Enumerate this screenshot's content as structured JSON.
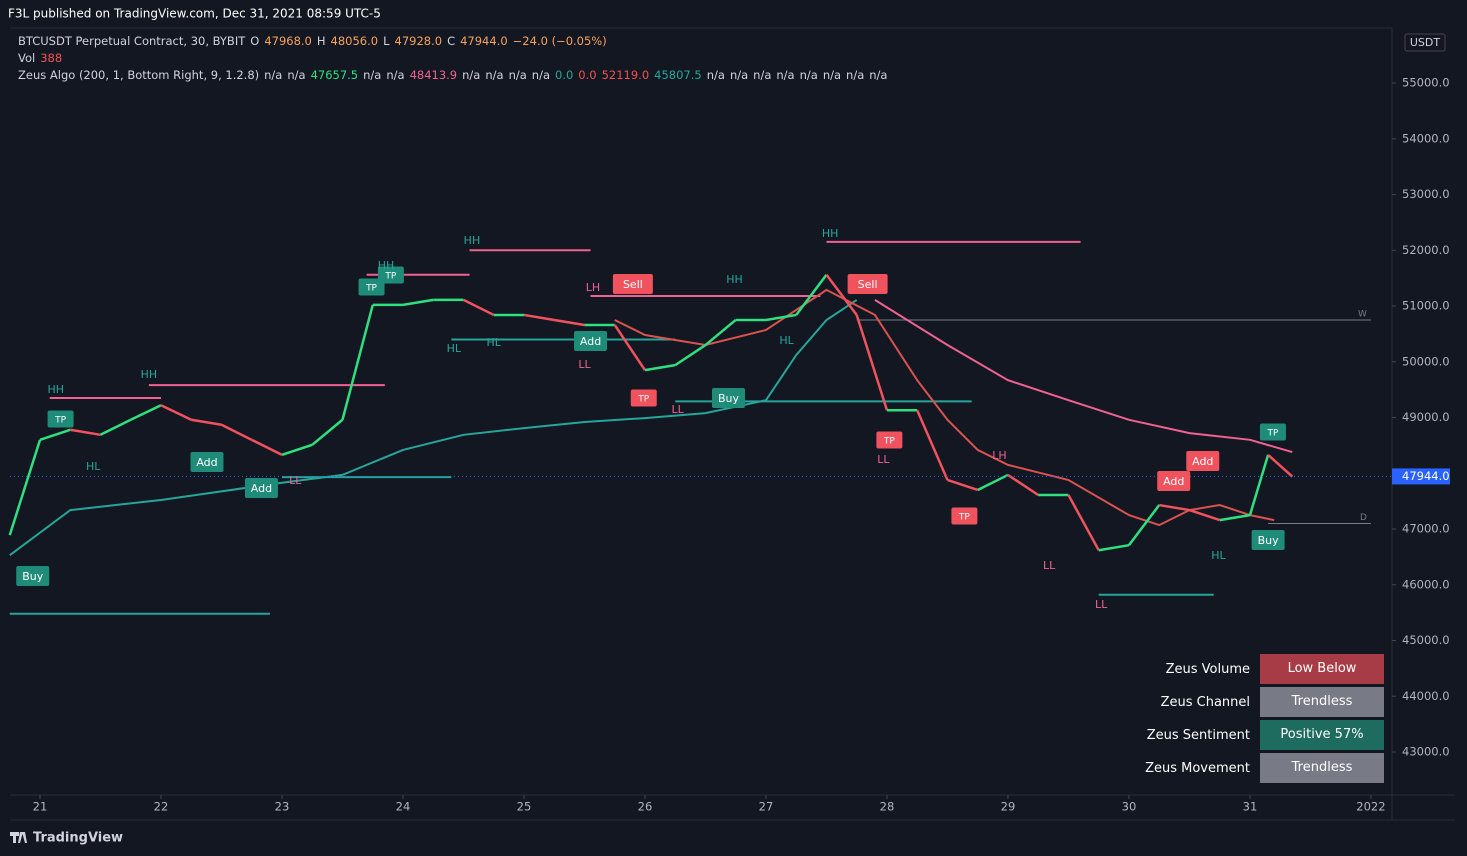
{
  "header": {
    "published": "F3L published on TradingView.com, Dec 31, 2021 08:59 UTC-5",
    "legend": [
      [
        {
          "text": "BTCUSDT Perpetual Contract, 30, BYBIT",
          "color": "#d1d4dc"
        },
        {
          "text": "O",
          "color": "#d1d4dc"
        },
        {
          "text": "47968.0",
          "color": "#f7a35c"
        },
        {
          "text": "H",
          "color": "#d1d4dc"
        },
        {
          "text": "48056.0",
          "color": "#f7a35c"
        },
        {
          "text": "L",
          "color": "#d1d4dc"
        },
        {
          "text": "47928.0",
          "color": "#f7a35c"
        },
        {
          "text": "C",
          "color": "#d1d4dc"
        },
        {
          "text": "47944.0",
          "color": "#f7a35c"
        },
        {
          "text": "−24.0 (−0.05%)",
          "color": "#f7a35c"
        }
      ],
      [
        {
          "text": "Vol",
          "color": "#d1d4dc"
        },
        {
          "text": "388",
          "color": "#f05350"
        }
      ],
      [
        {
          "text": "Zeus Algo (200, 1, Bottom Right, 9, 1.2.8)",
          "color": "#d1d4dc"
        },
        {
          "text": "n/a",
          "color": "#d1d4dc"
        },
        {
          "text": "n/a",
          "color": "#d1d4dc"
        },
        {
          "text": "47657.5",
          "color": "#2ee07e"
        },
        {
          "text": "n/a",
          "color": "#d1d4dc"
        },
        {
          "text": "n/a",
          "color": "#d1d4dc"
        },
        {
          "text": "48413.9",
          "color": "#f06292"
        },
        {
          "text": "n/a",
          "color": "#d1d4dc"
        },
        {
          "text": "n/a",
          "color": "#d1d4dc"
        },
        {
          "text": "n/a",
          "color": "#d1d4dc"
        },
        {
          "text": "n/a",
          "color": "#d1d4dc"
        },
        {
          "text": "0.0",
          "color": "#26a69a"
        },
        {
          "text": "0.0",
          "color": "#f05350"
        },
        {
          "text": "52119.0",
          "color": "#f05350"
        },
        {
          "text": "45807.5",
          "color": "#26a69a"
        },
        {
          "text": "n/a",
          "color": "#d1d4dc"
        },
        {
          "text": "n/a",
          "color": "#d1d4dc"
        },
        {
          "text": "n/a",
          "color": "#d1d4dc"
        },
        {
          "text": "n/a",
          "color": "#d1d4dc"
        },
        {
          "text": "n/a",
          "color": "#d1d4dc"
        },
        {
          "text": "n/a",
          "color": "#d1d4dc"
        },
        {
          "text": "n/a",
          "color": "#d1d4dc"
        },
        {
          "text": "n/a",
          "color": "#d1d4dc"
        }
      ]
    ]
  },
  "chart_data": {
    "type": "line",
    "colors": {
      "up": "#2ee07e",
      "down": "#f0525e"
    },
    "x": [
      20.75,
      21,
      21.25,
      21.5,
      21.75,
      22,
      22.25,
      22.5,
      22.75,
      23,
      23.25,
      23.5,
      23.75,
      24,
      24.25,
      24.5,
      24.75,
      25,
      25.25,
      25.5,
      25.75,
      26,
      26.25,
      26.5,
      26.75,
      27,
      27.25,
      27.5,
      27.75,
      28,
      28.25,
      28.5,
      28.75,
      29,
      29.25,
      29.5,
      29.75,
      30,
      30.25,
      30.5,
      30.75,
      31,
      31.15,
      31.35
    ],
    "values": [
      46890,
      48600,
      48780,
      48690,
      48960,
      49220,
      48960,
      48870,
      48600,
      48330,
      48510,
      48960,
      51020,
      51020,
      51110,
      51110,
      50840,
      50840,
      50750,
      50660,
      50660,
      49850,
      49940,
      50300,
      50750,
      50750,
      50840,
      51560,
      50840,
      49130,
      49130,
      47880,
      47700,
      47970,
      47610,
      47610,
      46620,
      46710,
      47430,
      47340,
      47160,
      47250,
      48330,
      47940
    ],
    "series": [
      {
        "color": "#f06292",
        "x": [
          27.9,
          28.5,
          29,
          29.5,
          30,
          30.5,
          31,
          31.35
        ],
        "values": [
          51110,
          50300,
          49670,
          49310,
          48960,
          48720,
          48600,
          48380
        ]
      },
      {
        "color": "#26a69a",
        "x": [
          20.75,
          21.25,
          22,
          23,
          23.5,
          24,
          24.5,
          25,
          25.5,
          26,
          26.5,
          27,
          27.25,
          27.5,
          27.75
        ],
        "values": [
          46530,
          47340,
          47520,
          47830,
          47970,
          48420,
          48690,
          48810,
          48920,
          48990,
          49080,
          49310,
          50120,
          50750,
          51110
        ]
      },
      {
        "color": "#d9534f",
        "x": [
          25.75,
          26,
          26.5,
          27,
          27.5,
          27.9,
          28.25,
          28.5,
          28.75,
          29,
          29.5,
          30,
          30.25,
          30.5,
          30.75,
          31,
          31.2
        ],
        "values": [
          50750,
          50480,
          50300,
          50570,
          51290,
          50840,
          49670,
          48960,
          48420,
          48150,
          47880,
          47250,
          47070,
          47340,
          47430,
          47250,
          47160
        ]
      }
    ],
    "levels": [
      {
        "y": 49350,
        "x0": 21.08,
        "x1": 22.0,
        "color": "#f06292"
      },
      {
        "y": 49580,
        "x0": 21.9,
        "x1": 23.85,
        "color": "#f06292"
      },
      {
        "y": 51560,
        "x0": 23.7,
        "x1": 24.55,
        "color": "#f06292"
      },
      {
        "y": 52000,
        "x0": 24.55,
        "x1": 25.55,
        "color": "#f06292"
      },
      {
        "y": 51180,
        "x0": 25.55,
        "x1": 27.45,
        "color": "#f06292"
      },
      {
        "y": 52150,
        "x0": 27.5,
        "x1": 29.6,
        "color": "#f06292"
      },
      {
        "y": 45480,
        "x0": 20.75,
        "x1": 22.9,
        "color": "#26a69a"
      },
      {
        "y": 47930,
        "x0": 23.0,
        "x1": 24.4,
        "color": "#26a69a"
      },
      {
        "y": 50400,
        "x0": 24.4,
        "x1": 26.25,
        "color": "#26a69a"
      },
      {
        "y": 49290,
        "x0": 26.25,
        "x1": 28.7,
        "color": "#26a69a"
      },
      {
        "y": 45820,
        "x0": 29.75,
        "x1": 30.7,
        "color": "#26a69a"
      },
      {
        "y": 50750,
        "x0": 27.75,
        "x1": 32.0,
        "color": "#787b86",
        "label": "W"
      },
      {
        "y": 47100,
        "x0": 31.15,
        "x1": 32.0,
        "color": "#787b86",
        "label": "D"
      }
    ],
    "annotations": [
      {
        "text": "Buy",
        "x": 20.94,
        "y": 46157,
        "style": "box",
        "color": "#1e8c78"
      },
      {
        "text": "TP",
        "x": 21.17,
        "y": 48973,
        "style": "box",
        "color": "#1e8c78"
      },
      {
        "text": "Add",
        "x": 22.38,
        "y": 48202,
        "style": "box",
        "color": "#1e8c78"
      },
      {
        "text": "Add",
        "x": 22.83,
        "y": 47735,
        "style": "box",
        "color": "#1e8c78"
      },
      {
        "text": "TP",
        "x": 23.74,
        "y": 51341,
        "style": "box",
        "color": "#1e8c78"
      },
      {
        "text": "TP",
        "x": 23.9,
        "y": 51556,
        "style": "box",
        "color": "#1e8c78"
      },
      {
        "text": "Add",
        "x": 25.55,
        "y": 50372,
        "style": "box",
        "color": "#1e8c78"
      },
      {
        "text": "Sell",
        "x": 25.9,
        "y": 51395,
        "style": "box",
        "color": "#f0525e"
      },
      {
        "text": "TP",
        "x": 25.99,
        "y": 49350,
        "style": "box",
        "color": "#f0525e"
      },
      {
        "text": "Buy",
        "x": 26.69,
        "y": 49350,
        "style": "box",
        "color": "#1e8c78"
      },
      {
        "text": "Sell",
        "x": 27.84,
        "y": 51395,
        "style": "box",
        "color": "#f0525e"
      },
      {
        "text": "TP",
        "x": 28.02,
        "y": 48596,
        "style": "box",
        "color": "#f0525e"
      },
      {
        "text": "TP",
        "x": 28.64,
        "y": 47233,
        "style": "box",
        "color": "#f0525e"
      },
      {
        "text": "Add",
        "x": 30.37,
        "y": 47861,
        "style": "box",
        "color": "#f0525e"
      },
      {
        "text": "Add",
        "x": 30.61,
        "y": 48220,
        "style": "box",
        "color": "#f0525e"
      },
      {
        "text": "TP",
        "x": 31.19,
        "y": 48740,
        "style": "box",
        "color": "#1e8c78"
      },
      {
        "text": "Buy",
        "x": 31.15,
        "y": 46803,
        "style": "box",
        "color": "#1e8c78"
      },
      {
        "text": "HH",
        "x": 21.13,
        "y": 49493,
        "style": "text",
        "color": "#26a69a"
      },
      {
        "text": "HL",
        "x": 21.44,
        "y": 48112,
        "style": "text",
        "color": "#26a69a"
      },
      {
        "text": "HH",
        "x": 21.9,
        "y": 49762,
        "style": "text",
        "color": "#26a69a"
      },
      {
        "text": "HH",
        "x": 23.86,
        "y": 51717,
        "style": "text",
        "color": "#26a69a"
      },
      {
        "text": "HH",
        "x": 24.57,
        "y": 52166,
        "style": "text",
        "color": "#26a69a"
      },
      {
        "text": "HL",
        "x": 24.42,
        "y": 50229,
        "style": "text",
        "color": "#26a69a"
      },
      {
        "text": "HL",
        "x": 24.75,
        "y": 50336,
        "style": "text",
        "color": "#26a69a"
      },
      {
        "text": "LH",
        "x": 25.57,
        "y": 51323,
        "style": "text",
        "color": "#f06292"
      },
      {
        "text": "LL",
        "x": 25.5,
        "y": 49942,
        "style": "text",
        "color": "#f06292"
      },
      {
        "text": "LL",
        "x": 26.27,
        "y": 49135,
        "style": "text",
        "color": "#f06292"
      },
      {
        "text": "HH",
        "x": 26.74,
        "y": 51466,
        "style": "text",
        "color": "#26a69a"
      },
      {
        "text": "HL",
        "x": 27.17,
        "y": 50372,
        "style": "text",
        "color": "#26a69a"
      },
      {
        "text": "HH",
        "x": 27.53,
        "y": 52291,
        "style": "text",
        "color": "#26a69a"
      },
      {
        "text": "LL",
        "x": 27.97,
        "y": 48238,
        "style": "text",
        "color": "#f06292"
      },
      {
        "text": "LH",
        "x": 28.93,
        "y": 48309,
        "style": "text",
        "color": "#f06292"
      },
      {
        "text": "LL",
        "x": 23.11,
        "y": 47861,
        "style": "text",
        "color": "#f06292"
      },
      {
        "text": "LL",
        "x": 29.34,
        "y": 46336,
        "style": "text",
        "color": "#f06292"
      },
      {
        "text": "LL",
        "x": 29.77,
        "y": 45637,
        "style": "text",
        "color": "#f06292"
      },
      {
        "text": "HL",
        "x": 30.74,
        "y": 46516,
        "style": "text",
        "color": "#26a69a"
      }
    ],
    "last_price": {
      "value": 47944,
      "label": "47944.0"
    },
    "currency": "USDT",
    "xlim": [
      20.752,
      32.174
    ],
    "xticks": [
      21,
      22,
      23,
      24,
      25,
      26,
      27,
      28,
      29,
      30,
      31,
      {
        "value": 32,
        "label": "2022"
      }
    ],
    "ylim": [
      42229,
      55987
    ],
    "yticks": [
      {
        "value": 43000,
        "label": "43000.0"
      },
      {
        "value": 44000,
        "label": "44000.0"
      },
      {
        "value": 45000,
        "label": "45000.0"
      },
      {
        "value": 46000,
        "label": "46000.0"
      },
      {
        "value": 47000,
        "label": "47000.0"
      },
      {
        "value": 48000,
        "label": "48000.0"
      },
      {
        "value": 49000,
        "label": "49000.0"
      },
      {
        "value": 50000,
        "label": "50000.0"
      },
      {
        "value": 51000,
        "label": "51000.0"
      },
      {
        "value": 52000,
        "label": "52000.0"
      },
      {
        "value": 53000,
        "label": "53000.0"
      },
      {
        "value": 54000,
        "label": "54000.0"
      },
      {
        "value": 55000,
        "label": "55000.0"
      }
    ]
  },
  "table": {
    "rows": [
      {
        "label": "Zeus Volume",
        "value": "Low Below Average",
        "color": "#a83c46"
      },
      {
        "label": "Zeus Channel",
        "value": "Trendless",
        "color": "#787b86"
      },
      {
        "label": "Zeus Sentiment",
        "value": "Positive 57%",
        "color": "#1e6b5f"
      },
      {
        "label": "Zeus Movement",
        "value": "Trendless",
        "color": "#787b86"
      }
    ]
  },
  "footer": {
    "brand": "TradingView"
  }
}
